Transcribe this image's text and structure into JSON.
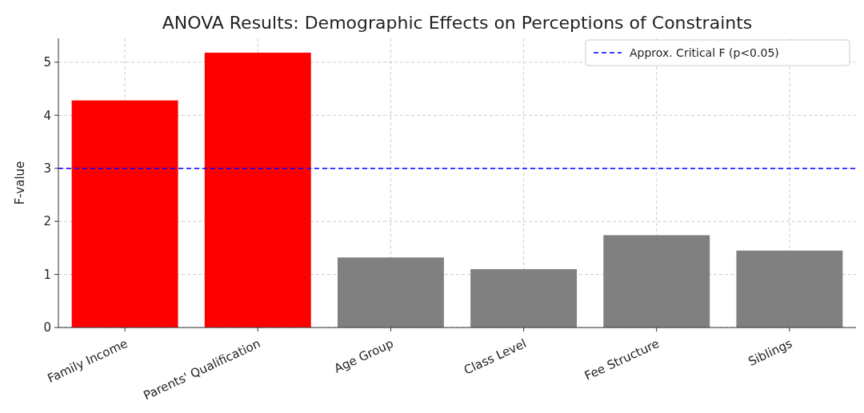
{
  "chart_data": {
    "type": "bar",
    "title": "ANOVA Results: Demographic Effects on Perceptions of Constraints",
    "ylabel": "F-value",
    "categories": [
      "Family Income",
      "Parents' Qualification",
      "Age Group",
      "Class Level",
      "Fee Structure",
      "Siblings"
    ],
    "values": [
      4.28,
      5.18,
      1.32,
      1.1,
      1.74,
      1.45
    ],
    "colors": [
      "#ff0000",
      "#ff0000",
      "#808080",
      "#808080",
      "#808080",
      "#808080"
    ],
    "ylim": [
      0,
      5.45
    ],
    "yticks": [
      0,
      1,
      2,
      3,
      4,
      5
    ],
    "grid": true,
    "legend": "top right",
    "ref_lines": [
      {
        "axis": "y",
        "value": 3,
        "label": "Approx. Critical F (p<0.05)",
        "color": "#0000ff",
        "line_style": "dashed"
      }
    ]
  }
}
